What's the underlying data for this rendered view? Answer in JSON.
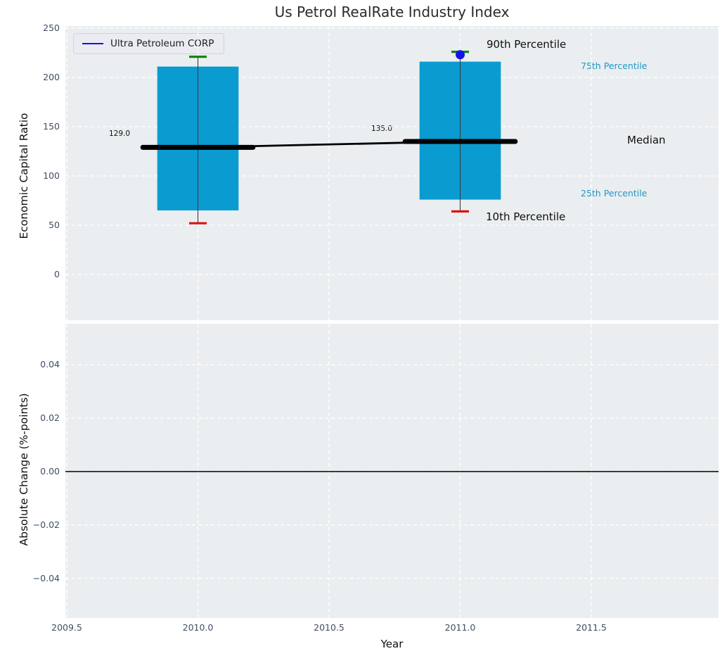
{
  "title": "Us Petrol RealRate Industry Index",
  "legend": {
    "label": "Ultra Petroleum CORP"
  },
  "annotations": {
    "p90": "90th Percentile",
    "p10": "10th Percentile",
    "p75": "75th Percentile",
    "p25": "25th Percentile",
    "median": "Median",
    "median_value_2010": "129.0",
    "median_value_2011": "135.0"
  },
  "colors": {
    "box_fill": "#0a9cd0",
    "median_line": "#000000",
    "trend_line": "#000000",
    "p90_cap": "#0a8a0a",
    "p10_cap": "#e01010",
    "company_marker": "#1414e6",
    "percentile_label": "#1e97c6",
    "tick_label": "#3f4d63",
    "axes_background": "#eaeef0",
    "gridline": "#ffffff",
    "zero_line": "#000000"
  },
  "chart_data": [
    {
      "type": "boxplot",
      "title": "Us Petrol RealRate Industry Index",
      "ylabel": "Economic Capital Ratio",
      "ylim": [
        -46,
        252
      ],
      "yticks": {
        "values": [
          250,
          200,
          150,
          100,
          50,
          0
        ],
        "labels": [
          "250",
          "200",
          "150",
          "100",
          "50",
          "0"
        ]
      },
      "xlim": [
        2009.49,
        2011.99
      ],
      "xticks": {
        "values": [
          2009.5,
          2010.0,
          2010.5,
          2011.0,
          2011.5
        ],
        "labels": []
      },
      "grid": true,
      "legend_position": "upper left",
      "box_width_years": 0.31,
      "median_line_width_years": 0.42,
      "boxes": [
        {
          "x": 2010.0,
          "p10": 52,
          "q1": 65,
          "median": 129,
          "q3": 211,
          "p90": 221,
          "median_label": "129.0"
        },
        {
          "x": 2011.0,
          "p10": 64,
          "q1": 76,
          "median": 135,
          "q3": 216,
          "p90": 226,
          "median_label": "135.0"
        }
      ],
      "company_series": {
        "name": "Ultra Petroleum CORP",
        "points": [
          {
            "x": 2011.0,
            "y": 223
          }
        ]
      },
      "median_trend": [
        {
          "x": 2010.0,
          "y": 129
        },
        {
          "x": 2011.0,
          "y": 135
        }
      ]
    },
    {
      "type": "line",
      "ylabel": "Absolute Change (%-points)",
      "xlabel": "Year",
      "ylim": [
        -0.055,
        0.055
      ],
      "yticks": {
        "values": [
          0.04,
          0.02,
          0.0,
          -0.02,
          -0.04
        ],
        "labels": [
          "0.04",
          "0.02",
          "0.00",
          "−0.02",
          "−0.04"
        ]
      },
      "xticks": {
        "values": [
          2009.5,
          2010.0,
          2010.5,
          2011.0,
          2011.5
        ],
        "labels": [
          "2009.5",
          "2010.0",
          "2010.5",
          "2011.0",
          "2011.5"
        ]
      },
      "grid": true,
      "zero_line": 0.0,
      "series": []
    }
  ]
}
